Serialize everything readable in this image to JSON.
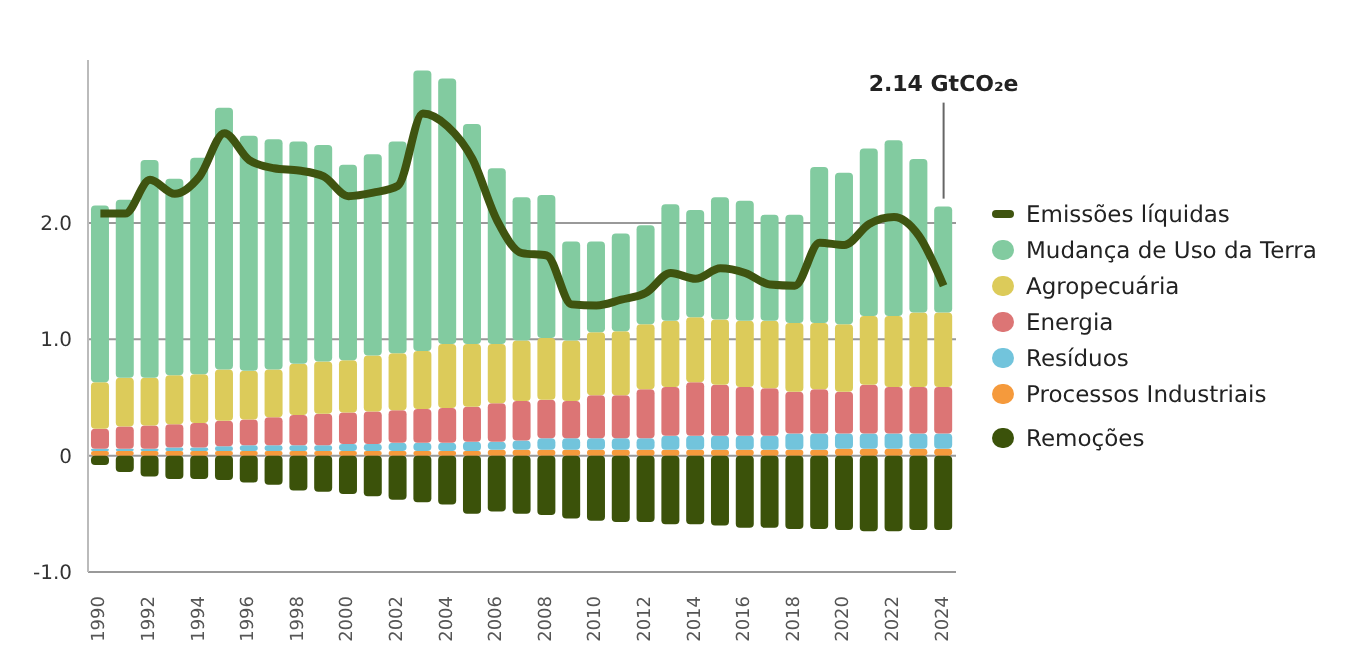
{
  "chart_data": {
    "type": "bar",
    "stacked": true,
    "categories": [
      "1990",
      null,
      "1992",
      null,
      "1994",
      null,
      "1996",
      null,
      "1998",
      null,
      "2000",
      null,
      "2002",
      null,
      "2004",
      null,
      "2006",
      null,
      "2008",
      null,
      "2010",
      null,
      "2012",
      null,
      "2014",
      null,
      "2016",
      null,
      "2018",
      null,
      "2020",
      null,
      "2022",
      null,
      "2024"
    ],
    "series": [
      {
        "name": "Processos Industriais",
        "color": "#f59a3c",
        "values": [
          0.04,
          0.04,
          0.04,
          0.04,
          0.04,
          0.04,
          0.04,
          0.04,
          0.04,
          0.04,
          0.04,
          0.04,
          0.04,
          0.04,
          0.04,
          0.04,
          0.05,
          0.05,
          0.05,
          0.05,
          0.05,
          0.05,
          0.05,
          0.05,
          0.05,
          0.05,
          0.05,
          0.05,
          0.05,
          0.05,
          0.06,
          0.06,
          0.06,
          0.06,
          0.06
        ]
      },
      {
        "name": "Resíduos",
        "color": "#72c4dc",
        "values": [
          0.02,
          0.02,
          0.02,
          0.03,
          0.03,
          0.04,
          0.05,
          0.05,
          0.05,
          0.05,
          0.06,
          0.06,
          0.07,
          0.07,
          0.07,
          0.08,
          0.07,
          0.08,
          0.1,
          0.1,
          0.1,
          0.1,
          0.1,
          0.12,
          0.12,
          0.12,
          0.12,
          0.12,
          0.14,
          0.14,
          0.13,
          0.13,
          0.13,
          0.13,
          0.13
        ]
      },
      {
        "name": "Energia",
        "color": "#dc7575",
        "values": [
          0.17,
          0.19,
          0.2,
          0.2,
          0.21,
          0.22,
          0.22,
          0.24,
          0.26,
          0.27,
          0.27,
          0.28,
          0.28,
          0.29,
          0.3,
          0.3,
          0.33,
          0.34,
          0.33,
          0.32,
          0.37,
          0.37,
          0.42,
          0.42,
          0.46,
          0.44,
          0.42,
          0.41,
          0.36,
          0.38,
          0.36,
          0.42,
          0.4,
          0.4,
          0.4
        ]
      },
      {
        "name": "Agropecuária",
        "color": "#dccb5a",
        "values": [
          0.4,
          0.42,
          0.41,
          0.42,
          0.42,
          0.44,
          0.42,
          0.41,
          0.44,
          0.45,
          0.45,
          0.48,
          0.49,
          0.5,
          0.55,
          0.54,
          0.51,
          0.52,
          0.53,
          0.52,
          0.54,
          0.55,
          0.56,
          0.57,
          0.56,
          0.56,
          0.57,
          0.58,
          0.59,
          0.57,
          0.58,
          0.59,
          0.61,
          0.64,
          0.64
        ]
      },
      {
        "name": "Mudança de Uso da Terra",
        "color": "#82cba0",
        "values": [
          1.52,
          1.53,
          1.87,
          1.69,
          1.86,
          2.25,
          2.02,
          1.98,
          1.91,
          1.86,
          1.68,
          1.73,
          1.82,
          2.41,
          2.28,
          1.89,
          1.51,
          1.23,
          1.23,
          0.85,
          0.78,
          0.84,
          0.85,
          1.0,
          0.92,
          1.05,
          1.03,
          0.91,
          0.93,
          1.34,
          1.3,
          1.44,
          1.51,
          1.32,
          0.91
        ]
      },
      {
        "name": "Remoções",
        "color": "#3b520a",
        "values": [
          -0.08,
          -0.14,
          -0.18,
          -0.2,
          -0.2,
          -0.21,
          -0.23,
          -0.25,
          -0.3,
          -0.31,
          -0.33,
          -0.35,
          -0.38,
          -0.4,
          -0.42,
          -0.5,
          -0.48,
          -0.5,
          -0.51,
          -0.54,
          -0.56,
          -0.57,
          -0.57,
          -0.59,
          -0.59,
          -0.6,
          -0.62,
          -0.62,
          -0.63,
          -0.63,
          -0.64,
          -0.65,
          -0.65,
          -0.64,
          -0.64
        ]
      },
      {
        "name": "Emissões líquidas",
        "type": "line",
        "color": "#3f5410",
        "values": [
          2.08,
          2.08,
          2.37,
          2.25,
          2.4,
          2.77,
          2.54,
          2.47,
          2.45,
          2.4,
          2.23,
          2.26,
          2.32,
          2.94,
          2.83,
          2.55,
          2.02,
          1.74,
          1.72,
          1.3,
          1.29,
          1.34,
          1.4,
          1.57,
          1.52,
          1.61,
          1.57,
          1.47,
          1.46,
          1.83,
          1.81,
          1.99,
          2.05,
          1.89,
          1.46
        ]
      }
    ],
    "ylim": [
      -1,
      3.4
    ],
    "yticks": [
      {
        "value": -1,
        "label": "-1.0"
      },
      0,
      {
        "value": 1,
        "label": "1.0"
      },
      {
        "value": 2,
        "label": "2.0"
      }
    ],
    "grid": "y",
    "legend": "right",
    "marker": "none",
    "line_style": "solid",
    "annotations": [
      {
        "text": "2.14 GtCO₂e",
        "x": "2024",
        "y": 2.14
      }
    ]
  }
}
